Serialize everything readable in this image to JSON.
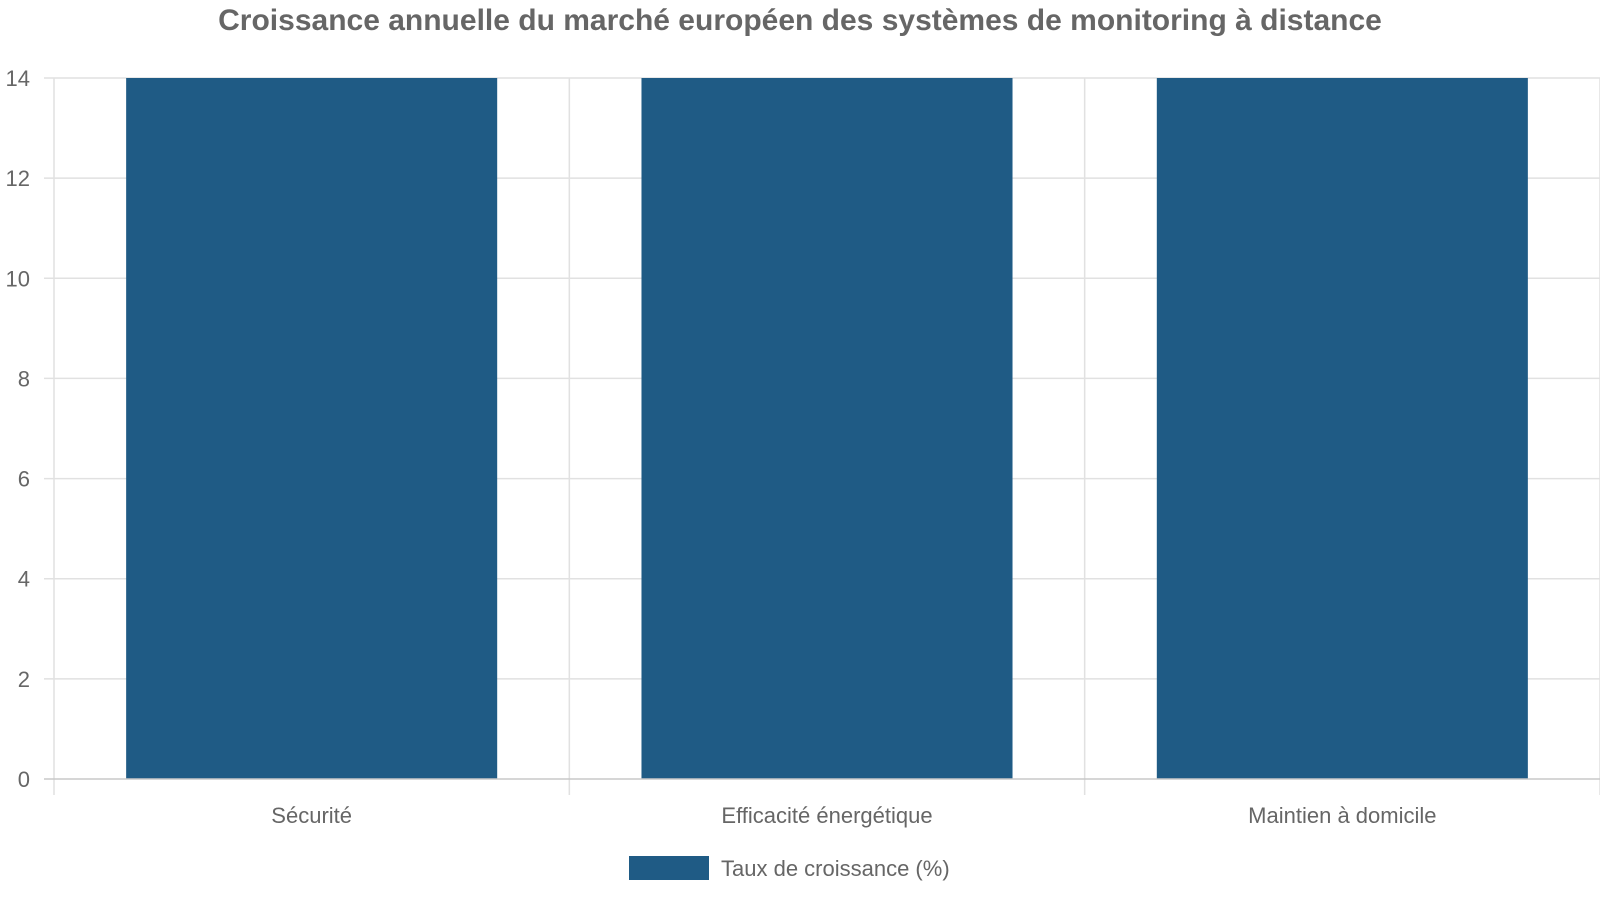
{
  "chart_data": {
    "type": "bar",
    "title": "Croissance annuelle du marché européen des systèmes de monitoring à distance",
    "categories": [
      "Sécurité",
      "Efficacité énergétique",
      "Maintien à domicile"
    ],
    "series": [
      {
        "name": "Taux de croissance (%)",
        "values": [
          14,
          14,
          14
        ],
        "color": "#1f5b85"
      }
    ],
    "xlabel": "",
    "ylabel": "",
    "ylim": [
      0,
      14
    ],
    "yticks": [
      0,
      2,
      4,
      6,
      8,
      10,
      12,
      14
    ],
    "grid": true,
    "legend_position": "bottom"
  }
}
